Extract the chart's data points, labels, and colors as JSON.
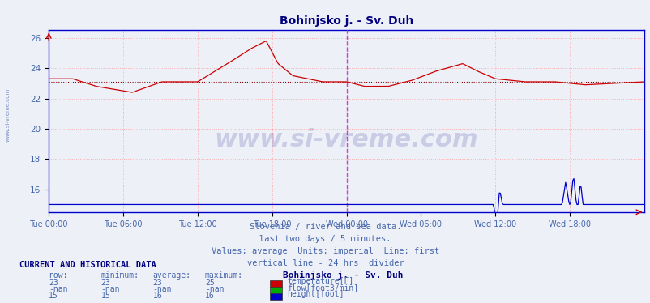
{
  "title": "Bohinjsko j. - Sv. Duh",
  "title_color": "#000080",
  "title_fontsize": 10,
  "bg_color": "#eef0f8",
  "plot_bg_color": "#eef0f8",
  "x_labels": [
    "Tue 00:00",
    "Tue 06:00",
    "Tue 12:00",
    "Tue 18:00",
    "Wed 00:00",
    "Wed 06:00",
    "Wed 12:00",
    "Wed 18:00"
  ],
  "x_ticks_norm": [
    0.0,
    0.125,
    0.25,
    0.375,
    0.5,
    0.625,
    0.75,
    0.875
  ],
  "ylim": [
    14.5,
    26.5
  ],
  "yticks": [
    16,
    18,
    20,
    22,
    24,
    26
  ],
  "grid_color": "#ffaaaa",
  "grid_ls": ":",
  "avg_line_color": "#880000",
  "avg_line_value": 23.1,
  "avg_line_ls": ":",
  "vline_color": "#cc44cc",
  "vline_pos": 0.5,
  "vline_ls": "--",
  "border_color": "#0000cc",
  "watermark": "www.si-vreme.com",
  "watermark_color": "#000080",
  "watermark_alpha": 0.15,
  "watermark_fontsize": 22,
  "footnote_lines": [
    "Slovenia / river and sea data.",
    "last two days / 5 minutes.",
    "Values: average  Units: imperial  Line: first",
    "vertical line - 24 hrs  divider"
  ],
  "footnote_color": "#4466aa",
  "footnote_fontsize": 7.5,
  "legend_title": "Bohinjsko j. - Sv. Duh",
  "legend_title_color": "#000080",
  "legend_title_fontsize": 8,
  "legend_items": [
    {
      "label": "temperature[F]",
      "color": "#cc0000"
    },
    {
      "label": "flow[foot3/min]",
      "color": "#00aa00"
    },
    {
      "label": "height[foot]",
      "color": "#0000cc"
    }
  ],
  "table_header": [
    "now:",
    "minimum:",
    "average:",
    "maximum:"
  ],
  "table_rows": [
    [
      "23",
      "23",
      "23",
      "25"
    ],
    [
      "-nan",
      "-nan",
      "-nan",
      "-nan"
    ],
    [
      "15",
      "15",
      "16",
      "16"
    ]
  ],
  "table_label_color": "#4466aa",
  "table_header_color": "#4466aa",
  "section_header": "CURRENT AND HISTORICAL DATA",
  "section_header_color": "#000080",
  "temp_line_color": "#cc0000",
  "height_line_color": "#0000cc",
  "flow_line_color": "#00aa00",
  "sidewater_color": "#4466aa"
}
